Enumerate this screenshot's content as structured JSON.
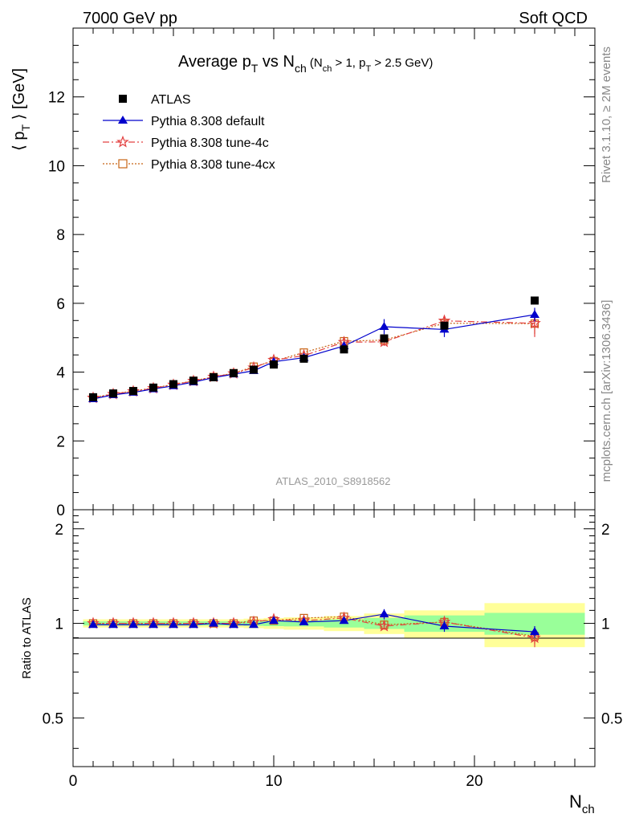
{
  "header": {
    "left": "7000 GeV pp",
    "right": "Soft QCD"
  },
  "side_labels": {
    "rivet": "Rivet 3.1.10, ≥ 2M events",
    "mcplots": "mcplots.cern.ch [arXiv:1306.3436]"
  },
  "watermark": "ATLAS_2010_S8918562",
  "legend_entries": [
    {
      "label": "ATLAS"
    },
    {
      "label": "Pythia 8.308 default"
    },
    {
      "label": "Pythia 8.308 tune-4c"
    },
    {
      "label": "Pythia 8.308 tune-4cx"
    }
  ],
  "colors": {
    "atlas": "#000000",
    "default": "#0000cc",
    "tune4c": "#e34040",
    "tune4cx": "#c86414",
    "band_inner": "#99ff99",
    "band_outer": "#ffff99"
  },
  "chart_data": [
    {
      "type": "scatter",
      "panel": "main",
      "title": "Average p_T vs N_ch (N_ch > 1, p_T > 2.5 GeV)",
      "xlabel": "N_ch",
      "ylabel": "⟨ p_T ⟩ [GeV]",
      "xlim": [
        0,
        26
      ],
      "ylim": [
        0,
        14
      ],
      "yticks": [
        0,
        2,
        4,
        6,
        8,
        10,
        12
      ],
      "legend_position": "top-left",
      "x": [
        1,
        2,
        3,
        4,
        5,
        6,
        7,
        8,
        9,
        10,
        11.5,
        13.5,
        15.5,
        18.5,
        23
      ],
      "series": [
        {
          "name": "ATLAS",
          "marker": "square",
          "values": [
            3.27,
            3.38,
            3.45,
            3.55,
            3.65,
            3.75,
            3.85,
            3.97,
            4.07,
            4.22,
            4.39,
            4.66,
            4.98,
            5.35,
            6.08
          ]
        },
        {
          "name": "Pythia 8.308 default",
          "marker": "triangle",
          "line": "solid",
          "values": [
            3.22,
            3.34,
            3.41,
            3.51,
            3.6,
            3.71,
            3.84,
            3.94,
            4.04,
            4.3,
            4.42,
            4.76,
            5.32,
            5.24,
            5.67
          ],
          "errors": [
            0.03,
            0.03,
            0.03,
            0.03,
            0.03,
            0.03,
            0.03,
            0.03,
            0.04,
            0.05,
            0.06,
            0.1,
            0.22,
            0.22,
            0.2
          ]
        },
        {
          "name": "Pythia 8.308 tune-4c",
          "marker": "star",
          "line": "dashdot",
          "values": [
            3.25,
            3.36,
            3.44,
            3.53,
            3.63,
            3.74,
            3.86,
            3.96,
            4.13,
            4.35,
            4.48,
            4.87,
            4.88,
            5.49,
            5.42
          ],
          "errors": [
            0.02,
            0.02,
            0.02,
            0.02,
            0.03,
            0.03,
            0.03,
            0.04,
            0.04,
            0.05,
            0.06,
            0.08,
            0.12,
            0.15,
            0.4
          ]
        },
        {
          "name": "Pythia 8.308 tune-4cx",
          "marker": "open-square",
          "line": "dotted",
          "values": [
            3.26,
            3.37,
            3.45,
            3.54,
            3.64,
            3.75,
            3.86,
            3.97,
            4.16,
            4.32,
            4.57,
            4.9,
            4.93,
            5.42,
            5.41
          ],
          "errors": [
            0.02,
            0.02,
            0.02,
            0.02,
            0.03,
            0.03,
            0.03,
            0.04,
            0.04,
            0.05,
            0.06,
            0.08,
            0.12,
            0.15,
            0.3
          ]
        }
      ]
    },
    {
      "type": "scatter",
      "panel": "ratio",
      "xlabel": "N_ch",
      "ylabel": "Ratio to ATLAS",
      "xlim": [
        0,
        26
      ],
      "ylim": [
        0.35,
        2.3
      ],
      "yscale": "log",
      "yticks": [
        0.5,
        1,
        2
      ],
      "xticks": [
        0,
        10,
        20
      ],
      "bands": {
        "x_edges": [
          0.5,
          1.5,
          2.5,
          3.5,
          4.5,
          5.5,
          6.5,
          7.5,
          8.5,
          9.5,
          10.5,
          12.5,
          14.5,
          16.5,
          20.5,
          25.5
        ],
        "inner": [
          0.015,
          0.015,
          0.015,
          0.015,
          0.015,
          0.015,
          0.015,
          0.015,
          0.018,
          0.02,
          0.022,
          0.03,
          0.04,
          0.06,
          0.08
        ],
        "outer": [
          0.03,
          0.03,
          0.03,
          0.03,
          0.03,
          0.03,
          0.03,
          0.03,
          0.035,
          0.04,
          0.045,
          0.055,
          0.075,
          0.1,
          0.16
        ]
      },
      "x": [
        1,
        2,
        3,
        4,
        5,
        6,
        7,
        8,
        9,
        10,
        11.5,
        13.5,
        15.5,
        18.5,
        23
      ],
      "series": [
        {
          "name": "Pythia 8.308 default",
          "values": [
            0.99,
            0.99,
            0.99,
            0.99,
            0.99,
            0.99,
            1.0,
            0.99,
            0.99,
            1.02,
            1.01,
            1.02,
            1.07,
            0.98,
            0.94
          ],
          "errors": [
            0.01,
            0.01,
            0.01,
            0.01,
            0.01,
            0.01,
            0.01,
            0.01,
            0.01,
            0.01,
            0.015,
            0.02,
            0.04,
            0.04,
            0.04
          ]
        },
        {
          "name": "Pythia 8.308 tune-4c",
          "values": [
            1.0,
            1.0,
            1.0,
            1.0,
            1.0,
            1.0,
            1.0,
            1.0,
            1.01,
            1.03,
            1.02,
            1.04,
            0.98,
            1.01,
            0.9
          ],
          "errors": [
            0.008,
            0.008,
            0.008,
            0.008,
            0.008,
            0.008,
            0.008,
            0.01,
            0.01,
            0.012,
            0.015,
            0.02,
            0.025,
            0.03,
            0.06
          ]
        },
        {
          "name": "Pythia 8.308 tune-4cx",
          "values": [
            1.0,
            1.0,
            1.0,
            1.0,
            1.0,
            1.0,
            1.0,
            1.0,
            1.02,
            1.02,
            1.04,
            1.05,
            0.99,
            1.01,
            0.91
          ],
          "errors": [
            0.008,
            0.008,
            0.008,
            0.008,
            0.008,
            0.008,
            0.008,
            0.01,
            0.01,
            0.012,
            0.015,
            0.02,
            0.025,
            0.03,
            0.05
          ]
        }
      ]
    }
  ]
}
